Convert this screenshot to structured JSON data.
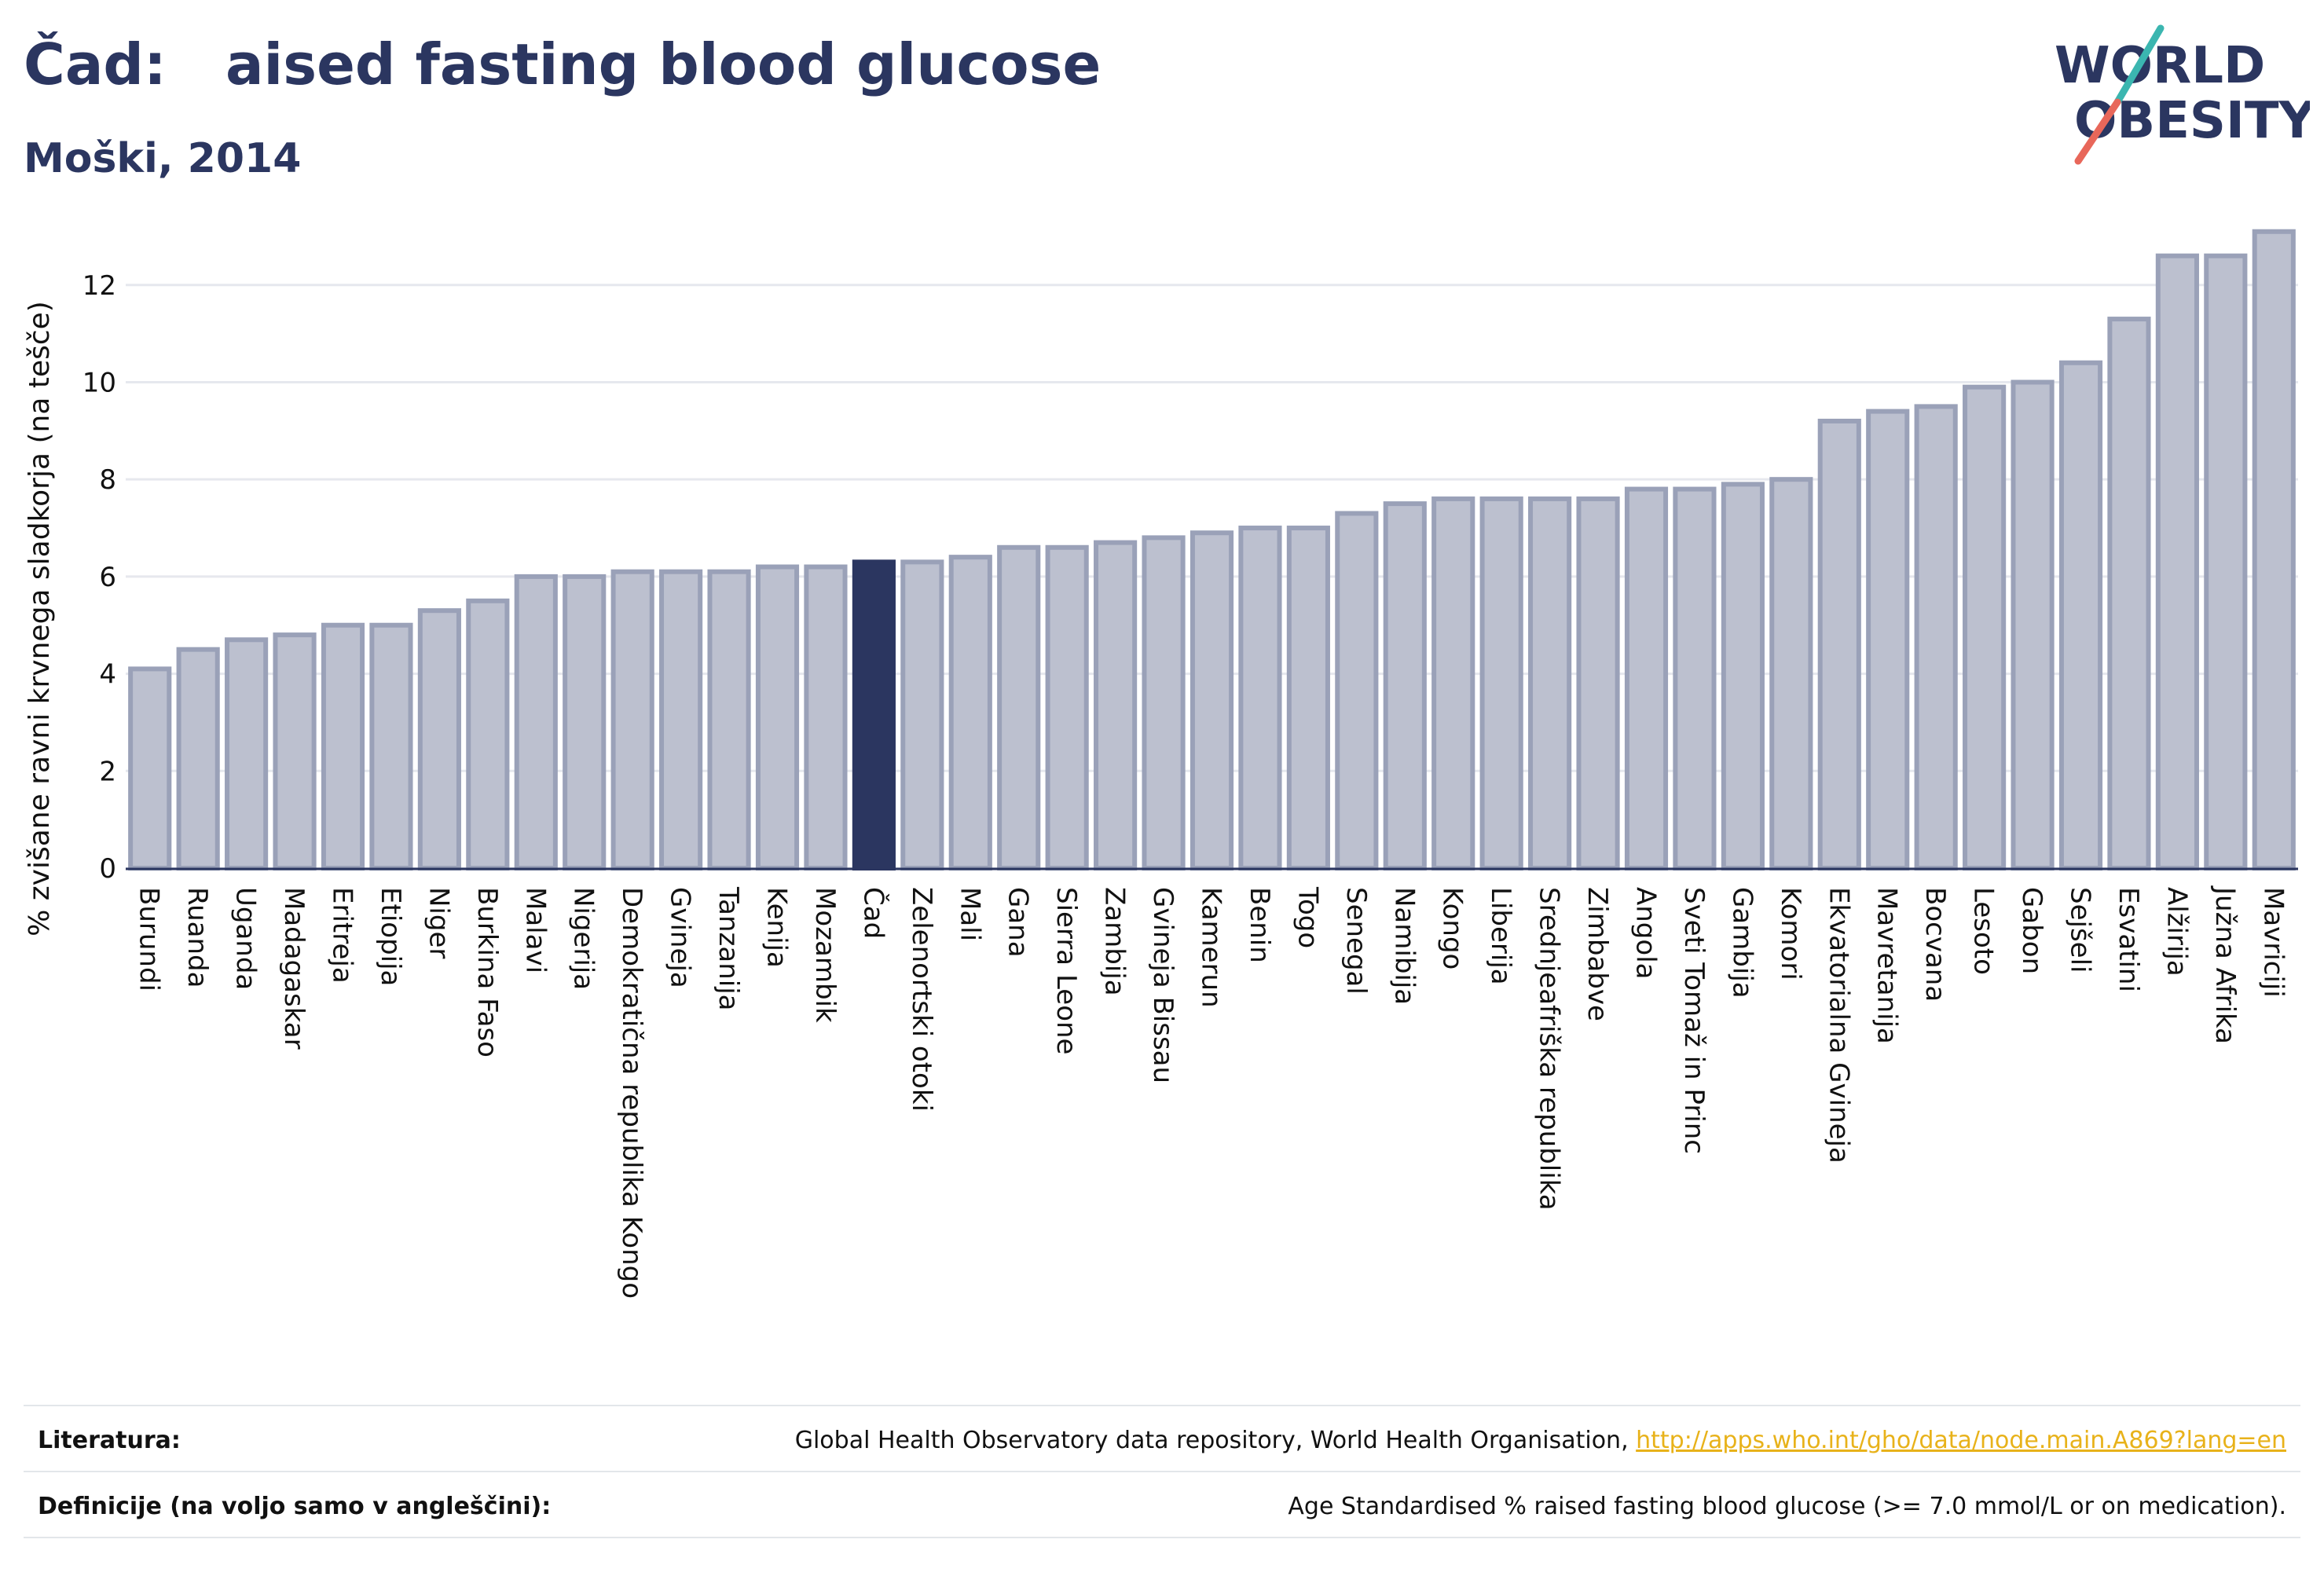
{
  "header": {
    "title": "Čad:   aised fasting blood glucose",
    "subtitle": "Moški, 2014"
  },
  "logo": {
    "line1": "WORLD",
    "line2": "OBESITY"
  },
  "colors": {
    "highlight": "#2b3660",
    "bar_fill": "#bcc0cf",
    "bar_stroke": "#9aa1b8",
    "grid": "#e6e8ee",
    "logo_teal": "#3bb6b0",
    "logo_coral": "#e8675a",
    "link": "#e8b21a"
  },
  "chart_data": {
    "type": "bar",
    "ylabel": "% zvišane ravni krvnega sladkorja (na tešče)",
    "ylim": [
      0,
      13.5
    ],
    "yticks": [
      0,
      2,
      4,
      6,
      8,
      10,
      12
    ],
    "grid": true,
    "highlight_category": "Čad",
    "categories": [
      "Burundi",
      "Ruanda",
      "Uganda",
      "Madagaskar",
      "Eritreja",
      "Etiopija",
      "Niger",
      "Burkina Faso",
      "Malavi",
      "Nigerija",
      "Demokratična republika Kongo",
      "Gvineja",
      "Tanzanija",
      "Kenija",
      "Mozambik",
      "Čad",
      "Zelenortski otoki",
      "Mali",
      "Gana",
      "Sierra Leone",
      "Zambija",
      "Gvineja Bissau",
      "Kamerun",
      "Benin",
      "Togo",
      "Senegal",
      "Namibija",
      "Kongo",
      "Liberija",
      "Srednjeafriška republika",
      "Zimbabve",
      "Angola",
      "Sveti Tomaž in Princ",
      "Gambija",
      "Komori",
      "Ekvatorialna Gvineja",
      "Mavretanija",
      "Bocvana",
      "Lesoto",
      "Gabon",
      "Sejšeli",
      "Esvatini",
      "Alžirija",
      "Južna Afrika",
      "Mavriciji"
    ],
    "values": [
      4.1,
      4.5,
      4.7,
      4.8,
      5.0,
      5.0,
      5.3,
      5.5,
      6.0,
      6.0,
      6.1,
      6.1,
      6.1,
      6.2,
      6.2,
      6.3,
      6.3,
      6.4,
      6.6,
      6.6,
      6.7,
      6.8,
      6.9,
      7.0,
      7.0,
      7.3,
      7.5,
      7.6,
      7.6,
      7.6,
      7.6,
      7.8,
      7.8,
      7.9,
      8.0,
      9.2,
      9.4,
      9.5,
      9.9,
      10.0,
      10.4,
      11.3,
      12.6,
      12.6,
      13.1
    ]
  },
  "footer": {
    "sources_label": "Literatura:",
    "sources_text": "Global Health Observatory data repository, World Health Organisation, ",
    "sources_link": "http://apps.who.int/gho/data/node.main.A869?lang=en",
    "definitions_label": "Definicije (na voljo samo v angleščini):",
    "definitions_text": "Age Standardised % raised fasting blood glucose (>= 7.0 mmol/L or on medication)."
  }
}
